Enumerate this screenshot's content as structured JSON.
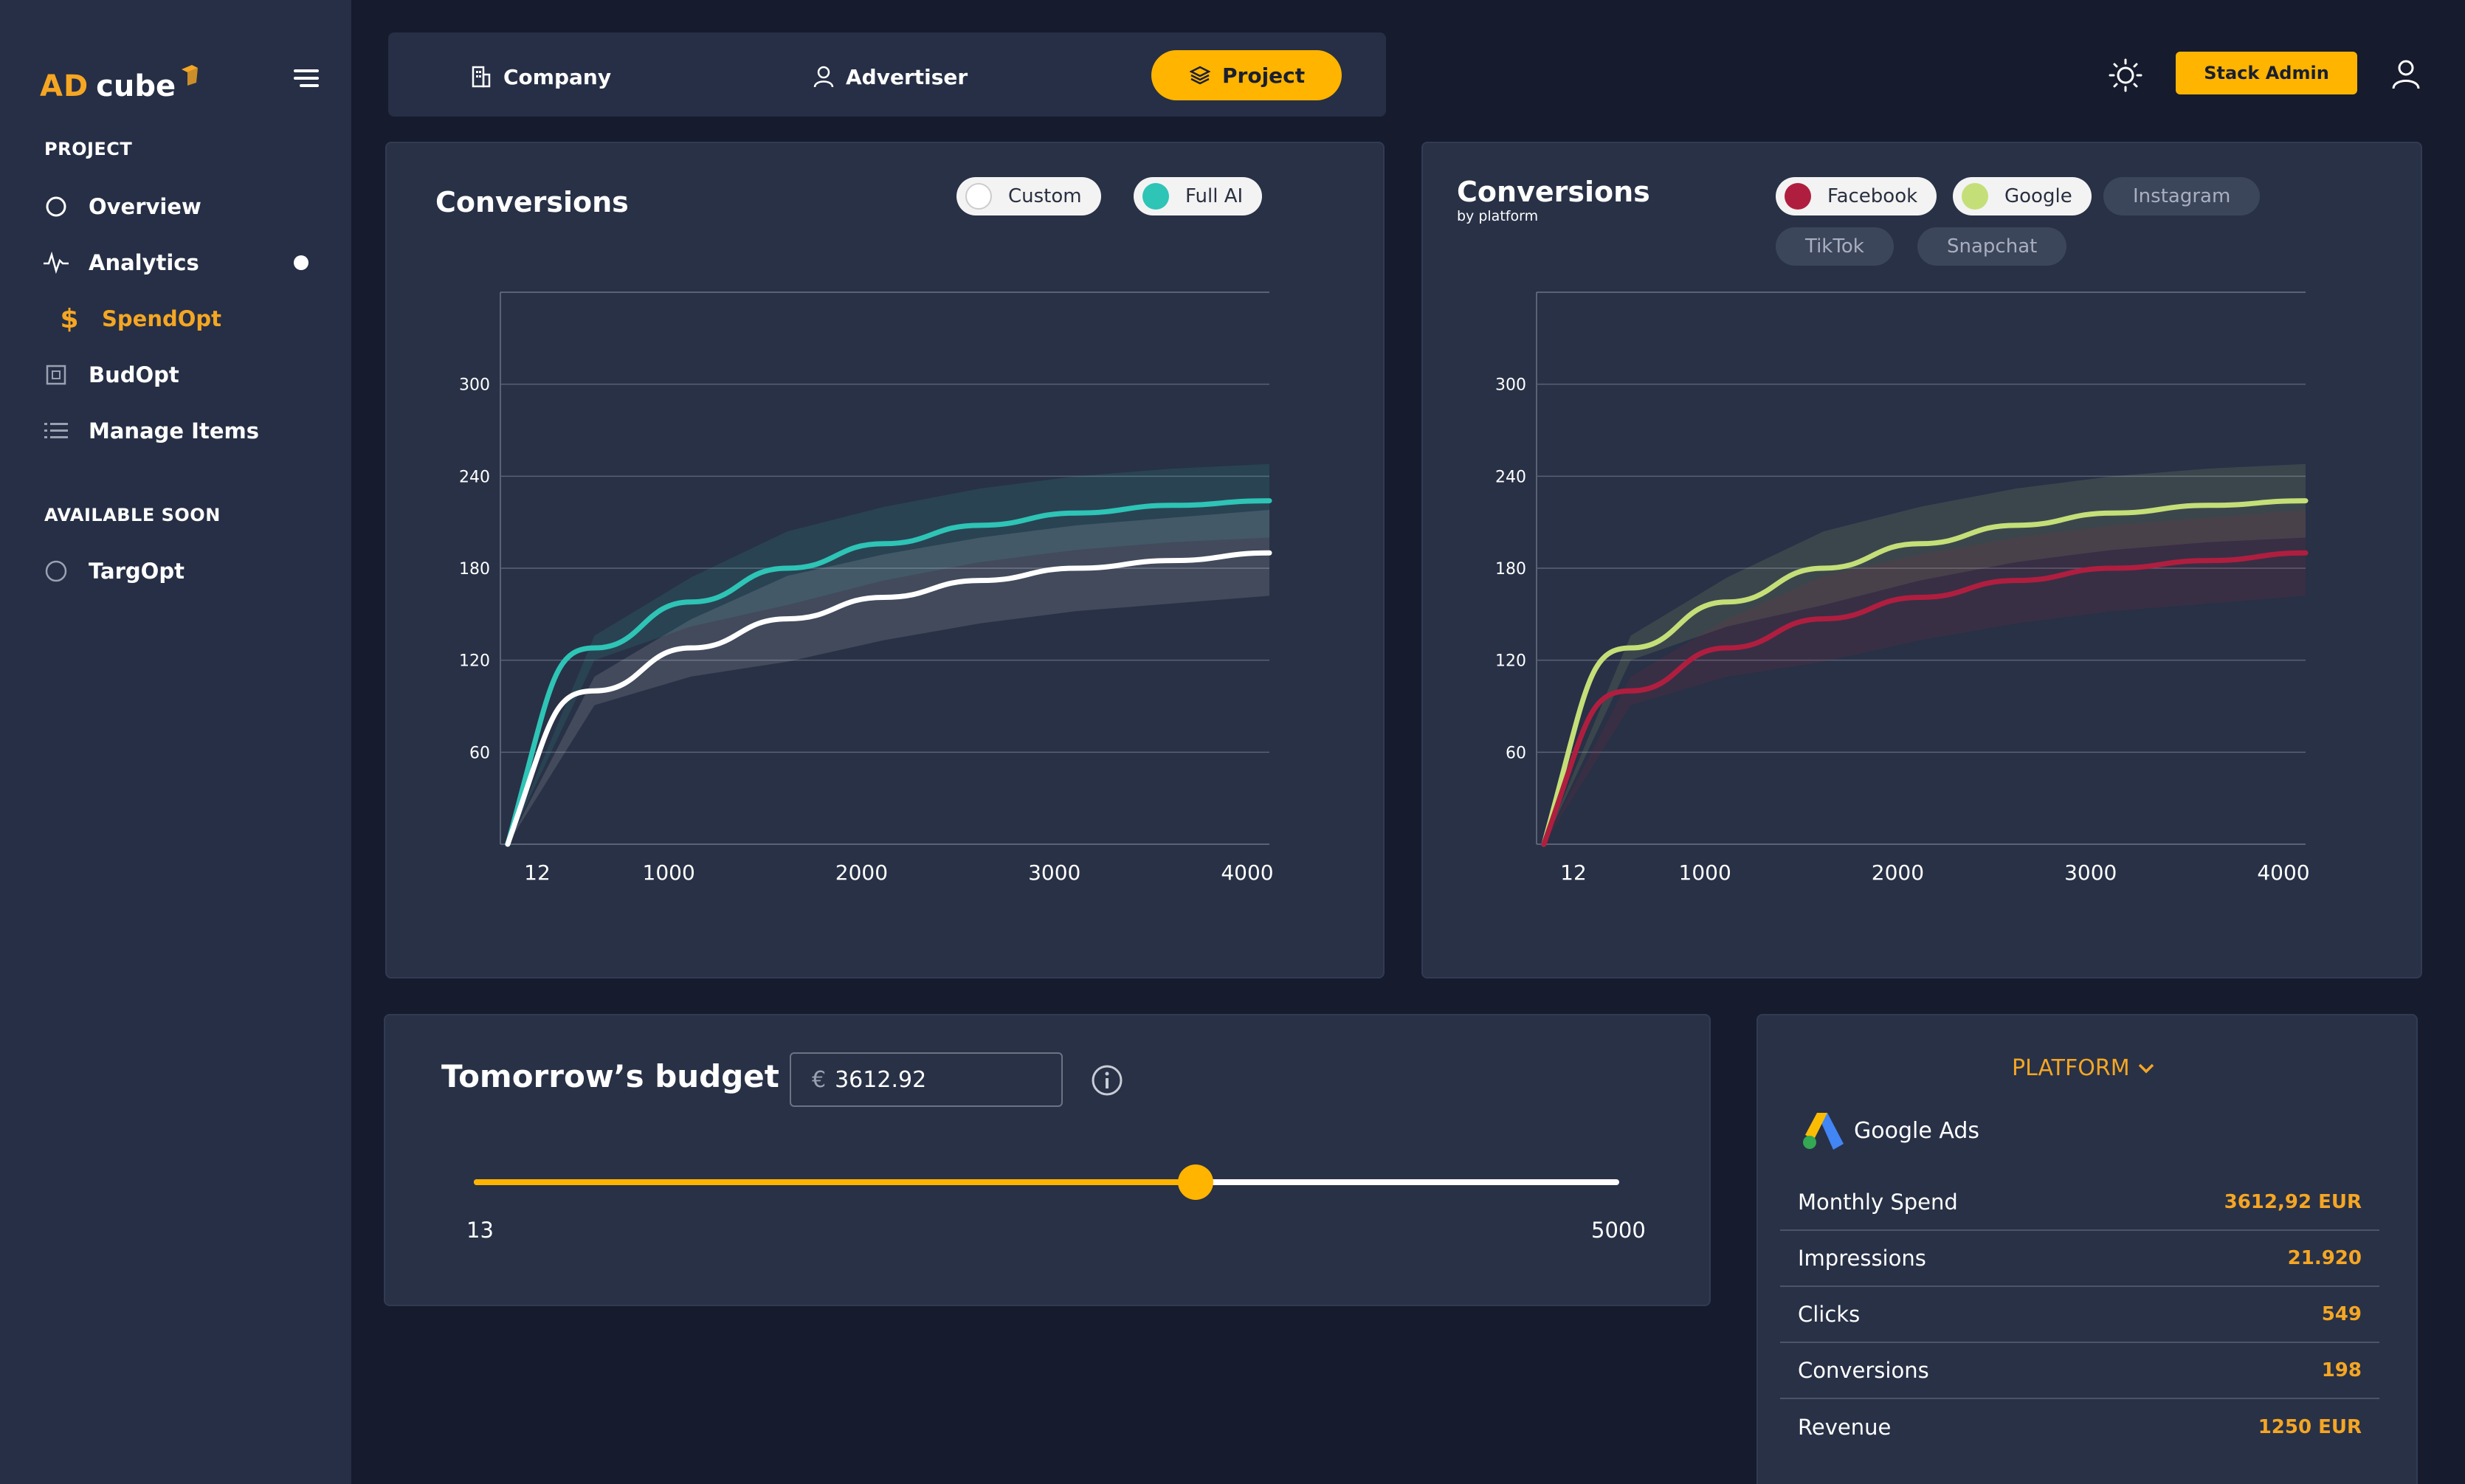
{
  "brand": {
    "logo_ad": "AD",
    "logo_cube": "cube"
  },
  "sidebar": {
    "section_project": "PROJECT",
    "items": [
      {
        "label": "Overview",
        "icon": "circle-icon"
      },
      {
        "label": "Analytics",
        "icon": "pulse-icon"
      },
      {
        "label": "SpendOpt",
        "icon": "dollar-icon"
      },
      {
        "label": "BudOpt",
        "icon": "box-icon"
      },
      {
        "label": "Manage Items",
        "icon": "list-icon"
      }
    ],
    "section_soon": "AVAILABLE SOON",
    "soon_items": [
      {
        "label": "TargOpt",
        "icon": "circle-icon"
      }
    ]
  },
  "tabs": {
    "company": "Company",
    "advertiser": "Advertiser",
    "project": "Project"
  },
  "header": {
    "admin_label": "Stack Admin"
  },
  "colors": {
    "accent": "#ffb400",
    "teal": "#2ec4b6",
    "white_series": "#ffffff",
    "facebook": "#b01e3f",
    "google": "#c4df78",
    "panel": "#283146",
    "background": "#161b2e"
  },
  "chart_left": {
    "title": "Conversions",
    "toggles": {
      "custom": "Custom",
      "full_ai": "Full AI"
    }
  },
  "chart_right": {
    "title": "Conversions",
    "subtitle": "by platform",
    "chips": {
      "facebook": "Facebook",
      "google": "Google",
      "instagram": "Instagram",
      "tiktok": "TikTok",
      "snapchat": "Snapchat"
    }
  },
  "chart_data": [
    {
      "type": "line",
      "title": "Conversions",
      "x_ticks": [
        "12",
        "1000",
        "2000",
        "3000",
        "4000"
      ],
      "y_ticks": [
        "60",
        "120",
        "180",
        "240",
        "300"
      ],
      "xlim": [
        12,
        4000
      ],
      "ylim": [
        0,
        360
      ],
      "grid": true,
      "series": [
        {
          "name": "Full AI",
          "color": "#2ec4b6",
          "x": [
            50,
            500,
            1000,
            1500,
            2000,
            2500,
            3000,
            3500,
            4000
          ],
          "y": [
            0,
            128,
            158,
            180,
            196,
            208,
            216,
            221,
            224
          ],
          "band": 24
        },
        {
          "name": "Custom",
          "color": "#ffffff",
          "x": [
            50,
            500,
            1000,
            1500,
            2000,
            2500,
            3000,
            3500,
            4000
          ],
          "y": [
            0,
            100,
            128,
            147,
            161,
            172,
            180,
            185,
            190
          ],
          "band": 28
        }
      ]
    },
    {
      "type": "line",
      "title": "Conversions",
      "subtitle": "by platform",
      "x_ticks": [
        "12",
        "1000",
        "2000",
        "3000",
        "4000"
      ],
      "y_ticks": [
        "60",
        "120",
        "180",
        "240",
        "300"
      ],
      "xlim": [
        12,
        4000
      ],
      "ylim": [
        0,
        360
      ],
      "grid": true,
      "series": [
        {
          "name": "Google",
          "color": "#c4df78",
          "x": [
            50,
            500,
            1000,
            1500,
            2000,
            2500,
            3000,
            3500,
            4000
          ],
          "y": [
            0,
            128,
            158,
            180,
            196,
            208,
            216,
            221,
            224
          ],
          "band": 24
        },
        {
          "name": "Facebook",
          "color": "#b01e3f",
          "x": [
            50,
            500,
            1000,
            1500,
            2000,
            2500,
            3000,
            3500,
            4000
          ],
          "y": [
            0,
            100,
            128,
            147,
            161,
            172,
            180,
            185,
            190
          ],
          "band": 28
        }
      ]
    }
  ],
  "budget": {
    "title": "Tomorrow’s budget",
    "currency": "€",
    "value": "3612.92",
    "slider_min": "13",
    "slider_max": "5000",
    "slider_fraction": 0.63
  },
  "platform": {
    "dropdown": "PLATFORM",
    "name": "Google Ads",
    "stats": [
      {
        "label": "Monthly Spend",
        "value": "3612,92 EUR"
      },
      {
        "label": "Impressions",
        "value": "21.920"
      },
      {
        "label": "Clicks",
        "value": "549"
      },
      {
        "label": "Conversions",
        "value": "198"
      },
      {
        "label": "Revenue",
        "value": "1250 EUR"
      }
    ]
  }
}
